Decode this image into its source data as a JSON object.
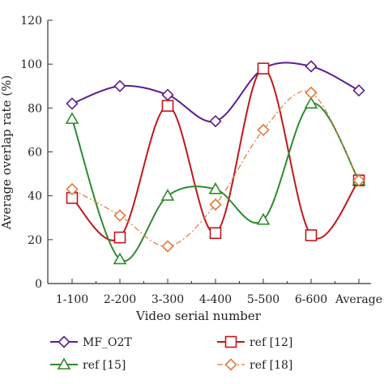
{
  "chart_data": {
    "type": "line",
    "xlabel": "Video serial number",
    "ylabel": "Average overlap rate (%)",
    "categories": [
      "1-100",
      "2-200",
      "3-300",
      "4-400",
      "5-500",
      "6-600",
      "Average"
    ],
    "ylim": [
      0,
      120
    ],
    "yticks": [
      0,
      20,
      40,
      60,
      80,
      100,
      120
    ],
    "grid": false,
    "legend_placement": "bottom",
    "series": [
      {
        "name": "MF_O2T",
        "marker": "diamond",
        "color": "#5b1f8e",
        "dashed": false,
        "values": [
          82,
          90,
          86,
          74,
          98,
          99,
          88
        ]
      },
      {
        "name": "ref [12]",
        "marker": "square",
        "color": "#c0171d",
        "dashed": false,
        "values": [
          39,
          21,
          81,
          23,
          98,
          22,
          47
        ]
      },
      {
        "name": "ref [15]",
        "marker": "triangle",
        "color": "#2e8b2e",
        "dashed": false,
        "values": [
          75,
          11,
          40,
          43,
          29,
          82,
          47
        ]
      },
      {
        "name": "ref [18]",
        "marker": "diamond",
        "color": "#e07a3c",
        "dashed": true,
        "values": [
          43,
          31,
          17,
          36,
          70,
          87,
          47
        ]
      }
    ]
  }
}
